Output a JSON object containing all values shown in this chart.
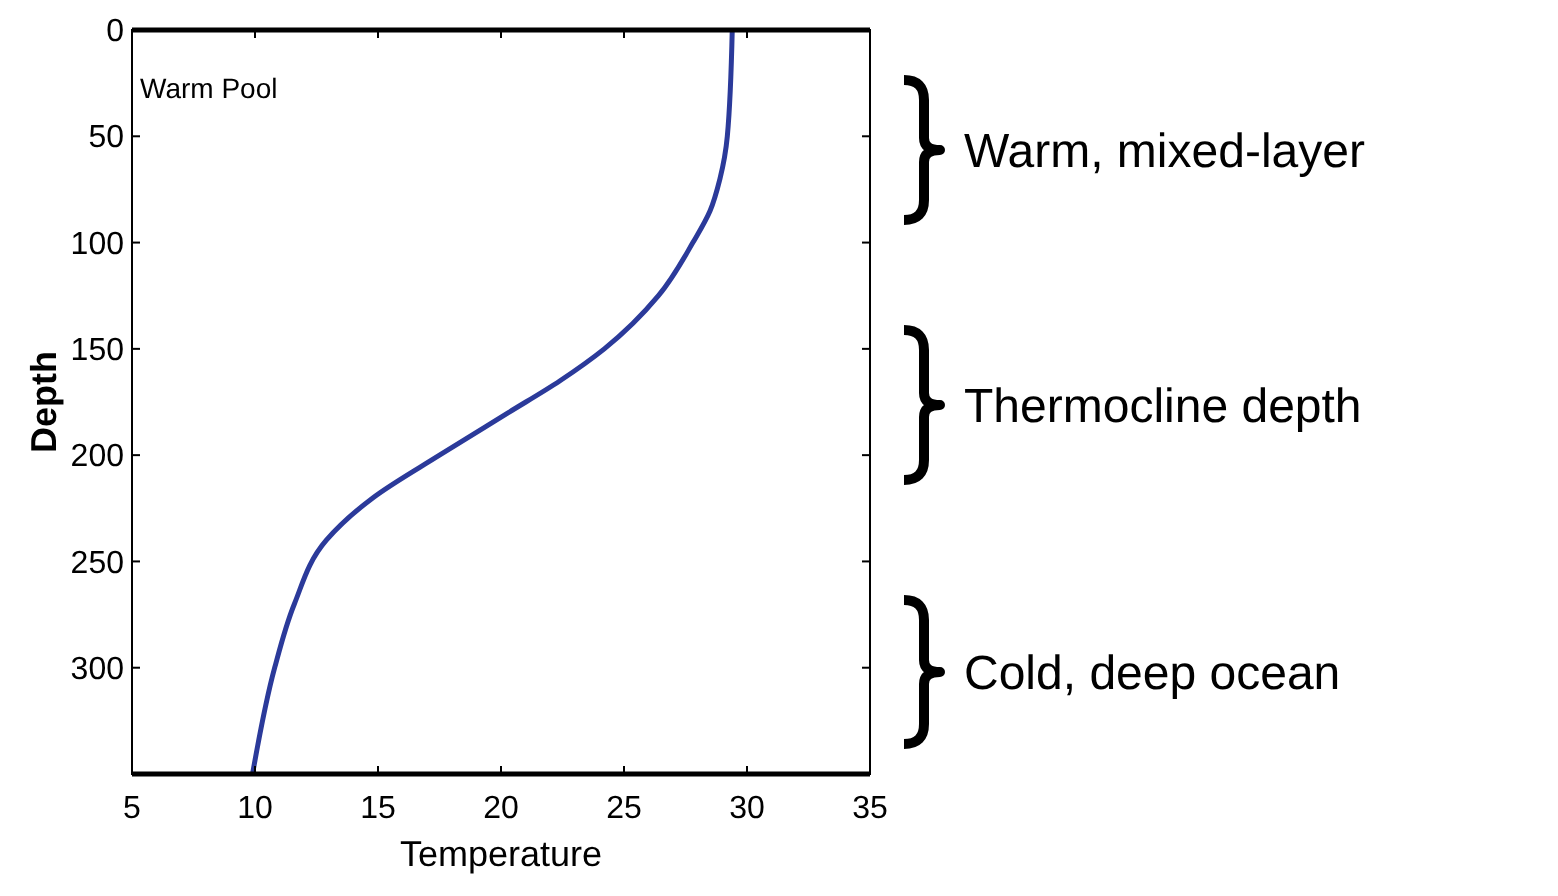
{
  "chart_data": {
    "type": "line",
    "xlabel": "Temperature",
    "ylabel": "Depth",
    "annotations": [
      "Warm Pool",
      "Warm, mixed-layer",
      "Thermocline depth",
      "Cold, deep ocean"
    ],
    "series": [
      {
        "color": "#2b3a9a",
        "x": [
          29.4,
          29.2,
          28.9,
          28.5,
          27.8,
          26.4,
          24.2,
          22.4,
          20.3,
          17.5,
          14.8,
          12.9,
          11.6,
          10.8,
          9.9
        ],
        "values": [
          0,
          50,
          70,
          85,
          100,
          125,
          150,
          165,
          180,
          200,
          220,
          240,
          270,
          300,
          350
        ]
      }
    ],
    "xlim": [
      5,
      35
    ],
    "xticks": [
      5,
      10,
      15,
      20,
      25,
      30,
      35
    ],
    "ylim": [
      350,
      0
    ],
    "yticks": [
      0,
      50,
      100,
      150,
      200,
      250,
      300
    ],
    "grid": false,
    "marker": "none",
    "line_style": "solid"
  }
}
